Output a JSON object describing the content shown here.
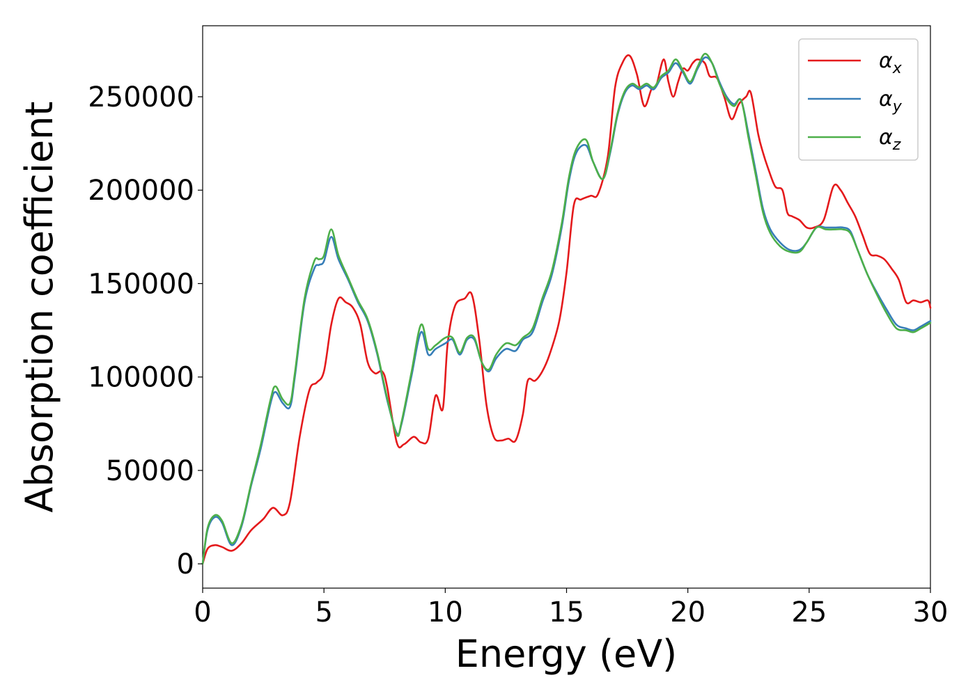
{
  "chart_data": {
    "type": "line",
    "xlabel": "Energy (eV)",
    "ylabel": "Absorption coefficient",
    "xlim": [
      0,
      30
    ],
    "ylim": [
      -13000,
      288000
    ],
    "xticks": [
      0,
      5,
      10,
      15,
      20,
      25,
      30
    ],
    "yticks": [
      0,
      50000,
      100000,
      150000,
      200000,
      250000
    ],
    "grid": false,
    "legend_position": "top-right",
    "series": [
      {
        "name": "α_x",
        "symbol": "α",
        "subscript": "x",
        "color": "#e41a1c",
        "x": [
          0,
          0.2,
          0.5,
          0.8,
          1.2,
          1.6,
          2.0,
          2.5,
          2.9,
          3.3,
          3.6,
          4.0,
          4.4,
          4.7,
          5.0,
          5.3,
          5.6,
          5.9,
          6.2,
          6.5,
          6.8,
          7.1,
          7.4,
          7.6,
          8.0,
          8.3,
          8.7,
          9.0,
          9.3,
          9.6,
          9.9,
          10.1,
          10.4,
          10.8,
          11.1,
          11.4,
          11.7,
          12.0,
          12.3,
          12.6,
          12.9,
          13.2,
          13.4,
          13.7,
          14.0,
          14.3,
          14.7,
          15.0,
          15.3,
          15.6,
          16.0,
          16.3,
          16.7,
          17.0,
          17.3,
          17.6,
          17.9,
          18.2,
          18.5,
          18.7,
          19.0,
          19.2,
          19.4,
          19.6,
          19.8,
          20.0,
          20.2,
          20.4,
          20.7,
          20.9,
          21.2,
          21.5,
          21.8,
          22.1,
          22.4,
          22.6,
          22.9,
          23.1,
          23.3,
          23.6,
          23.9,
          24.1,
          24.3,
          24.6,
          24.9,
          25.2,
          25.6,
          26.0,
          26.3,
          26.6,
          26.9,
          27.2,
          27.5,
          27.8,
          28.1,
          28.4,
          28.7,
          29.0,
          29.3,
          29.6,
          29.9,
          30.0
        ],
        "y": [
          0,
          8000,
          10000,
          9000,
          7000,
          11000,
          18000,
          24000,
          30000,
          26000,
          33000,
          68000,
          93000,
          97000,
          103000,
          128000,
          142000,
          140000,
          137000,
          128000,
          108000,
          102000,
          103000,
          95000,
          65000,
          64000,
          68000,
          65000,
          67000,
          90000,
          83000,
          118000,
          138000,
          142000,
          144000,
          120000,
          85000,
          68000,
          66000,
          67000,
          66000,
          80000,
          98000,
          98000,
          103000,
          112000,
          130000,
          156000,
          192000,
          195000,
          197000,
          198000,
          218000,
          255000,
          268000,
          272000,
          262000,
          245000,
          254000,
          256000,
          270000,
          258000,
          250000,
          258000,
          265000,
          264000,
          268000,
          270000,
          268000,
          261000,
          260000,
          250000,
          238000,
          246000,
          250000,
          252000,
          230000,
          220000,
          212000,
          202000,
          200000,
          188000,
          186000,
          184000,
          180000,
          180000,
          184000,
          202000,
          200000,
          193000,
          186000,
          176000,
          166000,
          165000,
          163000,
          158000,
          152000,
          140000,
          141000,
          140000,
          141000,
          137000
        ]
      },
      {
        "name": "α_y",
        "symbol": "α",
        "subscript": "y",
        "color": "#377eb8",
        "x": [
          0,
          0.2,
          0.5,
          0.8,
          1.2,
          1.6,
          2.0,
          2.4,
          2.8,
          3.0,
          3.3,
          3.6,
          3.8,
          4.2,
          4.6,
          4.8,
          5.0,
          5.3,
          5.6,
          6.0,
          6.4,
          6.8,
          7.2,
          7.6,
          8.0,
          8.2,
          8.6,
          9.0,
          9.3,
          9.6,
          10.0,
          10.3,
          10.6,
          10.9,
          11.2,
          11.5,
          11.8,
          12.1,
          12.5,
          12.9,
          13.2,
          13.6,
          14.0,
          14.4,
          14.8,
          15.1,
          15.4,
          15.8,
          16.1,
          16.5,
          16.8,
          17.1,
          17.4,
          17.7,
          18.0,
          18.3,
          18.6,
          18.9,
          19.2,
          19.5,
          19.8,
          20.1,
          20.4,
          20.7,
          21.0,
          21.3,
          21.6,
          21.9,
          22.2,
          22.5,
          22.8,
          23.1,
          23.4,
          23.8,
          24.2,
          24.6,
          24.9,
          25.3,
          25.7,
          26.1,
          26.4,
          26.7,
          27.0,
          27.4,
          27.8,
          28.2,
          28.6,
          29.0,
          29.3,
          29.6,
          30.0
        ],
        "y": [
          0,
          18000,
          25000,
          22000,
          10000,
          20000,
          42000,
          62000,
          86000,
          92000,
          86000,
          84000,
          100000,
          140000,
          158000,
          160000,
          162000,
          175000,
          163000,
          152000,
          140000,
          130000,
          112000,
          88000,
          70000,
          75000,
          100000,
          124000,
          112000,
          115000,
          118000,
          120000,
          112000,
          120000,
          120000,
          108000,
          103000,
          110000,
          115000,
          114000,
          120000,
          124000,
          140000,
          155000,
          180000,
          205000,
          220000,
          224000,
          215000,
          206000,
          220000,
          240000,
          252000,
          256000,
          254000,
          256000,
          254000,
          260000,
          263000,
          268000,
          263000,
          257000,
          265000,
          271000,
          268000,
          258000,
          250000,
          246000,
          248000,
          230000,
          210000,
          190000,
          179000,
          172000,
          168000,
          168000,
          172000,
          180000,
          180000,
          180000,
          180000,
          178000,
          168000,
          155000,
          145000,
          136000,
          128000,
          126000,
          125000,
          127000,
          130000
        ]
      },
      {
        "name": "α_z",
        "symbol": "α",
        "subscript": "z",
        "color": "#4daf4a",
        "x": [
          0,
          0.2,
          0.5,
          0.8,
          1.2,
          1.6,
          2.0,
          2.4,
          2.8,
          3.0,
          3.3,
          3.6,
          3.8,
          4.2,
          4.6,
          4.8,
          5.0,
          5.3,
          5.6,
          6.0,
          6.4,
          6.8,
          7.2,
          7.6,
          8.0,
          8.2,
          8.6,
          9.0,
          9.3,
          9.6,
          10.0,
          10.3,
          10.6,
          10.9,
          11.2,
          11.5,
          11.8,
          12.1,
          12.5,
          12.9,
          13.2,
          13.6,
          14.0,
          14.4,
          14.8,
          15.1,
          15.4,
          15.8,
          16.1,
          16.5,
          16.8,
          17.1,
          17.4,
          17.7,
          18.0,
          18.3,
          18.6,
          18.9,
          19.2,
          19.5,
          19.8,
          20.1,
          20.4,
          20.7,
          21.0,
          21.3,
          21.6,
          21.9,
          22.2,
          22.5,
          22.8,
          23.1,
          23.4,
          23.8,
          24.2,
          24.6,
          24.9,
          25.3,
          25.7,
          26.1,
          26.4,
          26.7,
          27.0,
          27.4,
          27.8,
          28.2,
          28.6,
          29.0,
          29.3,
          29.6,
          30.0
        ],
        "y": [
          0,
          19000,
          26000,
          23000,
          11000,
          21000,
          43000,
          64000,
          88000,
          95000,
          88000,
          86000,
          102000,
          142000,
          162000,
          163000,
          165000,
          179000,
          165000,
          153000,
          141000,
          131000,
          113000,
          89000,
          69000,
          76000,
          102000,
          128000,
          115000,
          117000,
          121000,
          121000,
          113000,
          121000,
          121000,
          108000,
          104000,
          112000,
          118000,
          117000,
          121000,
          126000,
          142000,
          157000,
          182000,
          207000,
          222000,
          227000,
          215000,
          206000,
          221000,
          241000,
          253000,
          257000,
          255000,
          257000,
          255000,
          261000,
          264000,
          270000,
          264000,
          258000,
          266000,
          273000,
          268000,
          257000,
          249000,
          245000,
          248000,
          228000,
          208000,
          188000,
          177000,
          170000,
          167000,
          167000,
          172000,
          180000,
          179000,
          179000,
          179000,
          177000,
          168000,
          155000,
          144000,
          134000,
          126000,
          125000,
          124000,
          126000,
          129000
        ]
      }
    ]
  }
}
